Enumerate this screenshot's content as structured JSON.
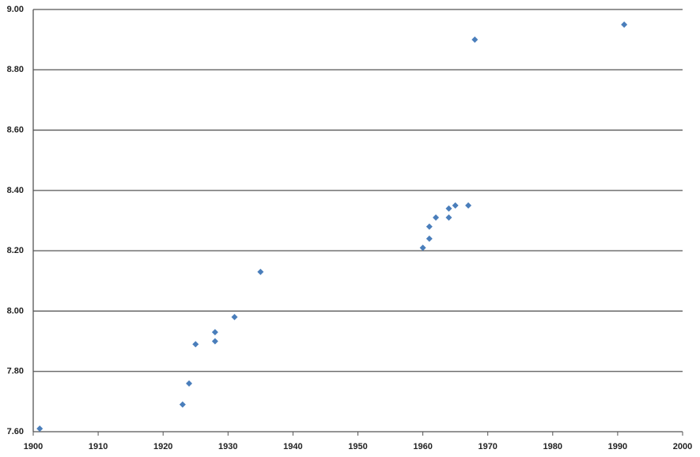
{
  "chart_data": {
    "type": "scatter",
    "x": [
      1901,
      1923,
      1924,
      1925,
      1928,
      1928,
      1931,
      1935,
      1960,
      1961,
      1961,
      1962,
      1964,
      1964,
      1965,
      1967,
      1968,
      1991
    ],
    "values": [
      7.61,
      7.69,
      7.76,
      7.89,
      7.93,
      7.9,
      7.98,
      8.13,
      8.21,
      8.24,
      8.28,
      8.31,
      8.34,
      8.31,
      8.35,
      8.35,
      8.9,
      8.95
    ],
    "color": "#4a7ebb",
    "xlim": [
      1900,
      2000
    ],
    "xticks": [
      1900,
      1910,
      1920,
      1930,
      1940,
      1950,
      1960,
      1970,
      1980,
      1990,
      2000
    ],
    "ylim": [
      7.6,
      9.0
    ],
    "yticks": [
      {
        "value": 7.6,
        "label": "7.60"
      },
      {
        "value": 7.8,
        "label": "7.80"
      },
      {
        "value": 8.0,
        "label": "8.00"
      },
      {
        "value": 8.2,
        "label": "8.20"
      },
      {
        "value": 8.4,
        "label": "8.40"
      },
      {
        "value": 8.6,
        "label": "8.60"
      },
      {
        "value": 8.8,
        "label": "8.80"
      },
      {
        "value": 9.0,
        "label": "9.00"
      }
    ],
    "grid": true
  }
}
